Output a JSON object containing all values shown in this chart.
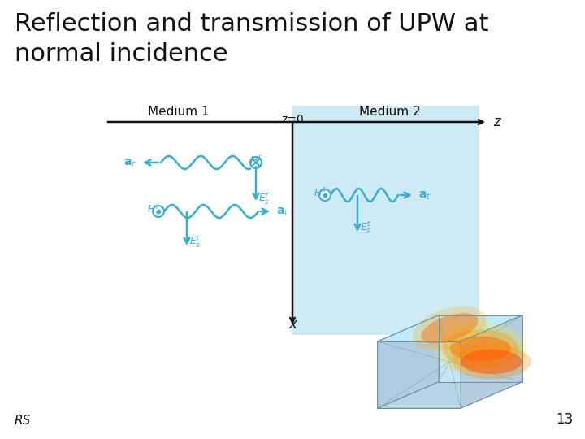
{
  "title": "Reflection and transmission of UPW at\nnormal incidence",
  "title_fontsize": 22,
  "page_number": "13",
  "rs_label": "RS",
  "background_color": "#ffffff",
  "diagram_bg_color": "#ceeaf5",
  "wave_color": "#3aaccc",
  "axis_color": "#111111",
  "text_color": "#111111",
  "medium1_label": "Medium 1",
  "medium2_label": "Medium 2",
  "z0_label": "z=0"
}
